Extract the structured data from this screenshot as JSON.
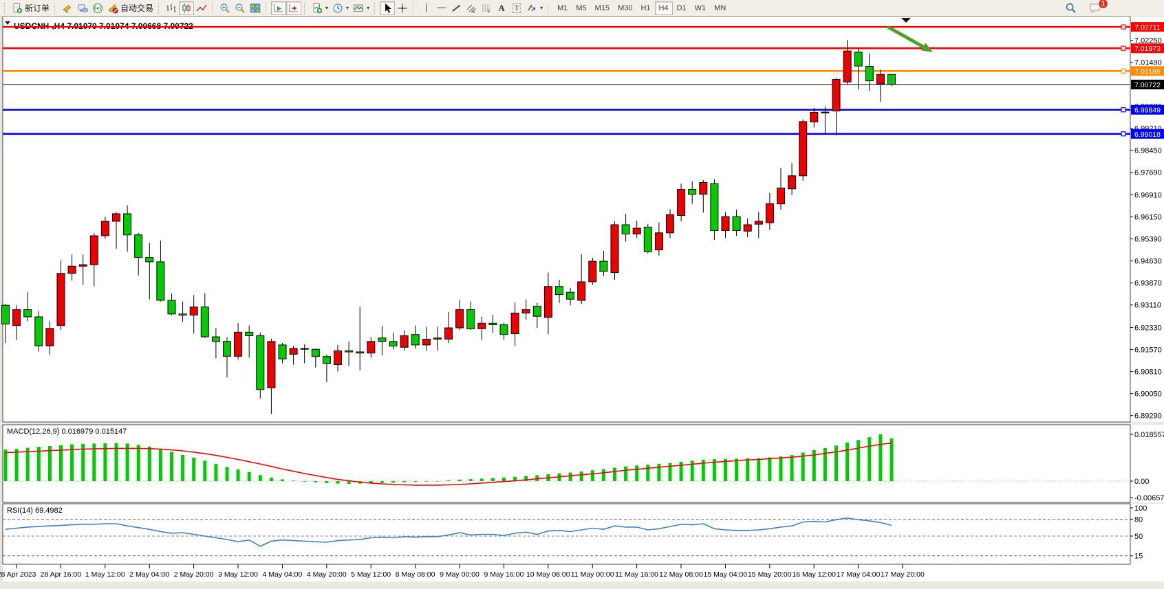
{
  "toolbar": {
    "new_order_label": "新订单",
    "autotrade_label": "自动交易",
    "timeframes": [
      "M1",
      "M5",
      "M15",
      "M30",
      "H1",
      "H4",
      "D1",
      "W1",
      "MN"
    ],
    "active_timeframe": "H4",
    "chat_badge": "1",
    "icons": [
      "new-order",
      "megaphone",
      "cloud-market",
      "signal",
      "auto-trading",
      "bar-chart",
      "candlestick-chart",
      "line-chart",
      "zoom-in",
      "zoom-out",
      "tile-windows",
      "auto-scroll",
      "chart-shift",
      "indicators",
      "periods",
      "templates",
      "cursor",
      "crosshair",
      "vertical-line",
      "horizontal-line",
      "trendline",
      "equidistant-channel",
      "fibonacci",
      "text",
      "text-label",
      "shapes",
      "search",
      "chat"
    ]
  },
  "chart_data": {
    "type": "candlestick",
    "symbol": "USDCNH-,H4",
    "ohlc_text": "7.01070 7.01074 7.00668 7.00722",
    "bull_color": "#ee0000",
    "bear_color": "#00cc00",
    "arrow_color": "#4e9e2e",
    "ylim": [
      6.8907,
      7.0307
    ],
    "x_labels": [
      "28 Apr 2023",
      "28 Apr 16:00",
      "1 May 12:00",
      "2 May 04:00",
      "2 May 20:00",
      "3 May 12:00",
      "4 May 04:00",
      "4 May 20:00",
      "5 May 12:00",
      "8 May 08:00",
      "9 May 00:00",
      "9 May 16:00",
      "10 May 08:00",
      "11 May 00:00",
      "11 May 16:00",
      "12 May 08:00",
      "15 May 04:00",
      "15 May 20:00",
      "16 May 12:00",
      "17 May 04:00",
      "17 May 20:00"
    ],
    "price_ticks": [
      {
        "label": "7.02250",
        "v": 7.0225
      },
      {
        "label": "7.01490",
        "v": 7.0149
      },
      {
        "label": "6.99970",
        "v": 6.9997
      },
      {
        "label": "6.99210",
        "v": 6.9921
      },
      {
        "label": "6.98450",
        "v": 6.9845
      },
      {
        "label": "6.97690",
        "v": 6.9769
      },
      {
        "label": "6.96910",
        "v": 6.9691
      },
      {
        "label": "6.96150",
        "v": 6.9615
      },
      {
        "label": "6.95390",
        "v": 6.9539
      },
      {
        "label": "6.94630",
        "v": 6.9463
      },
      {
        "label": "6.93870",
        "v": 6.9387
      },
      {
        "label": "6.93110",
        "v": 6.9311
      },
      {
        "label": "6.92330",
        "v": 6.9233
      },
      {
        "label": "6.91570",
        "v": 6.9157
      },
      {
        "label": "6.90810",
        "v": 6.9081
      },
      {
        "label": "6.90050",
        "v": 6.9005
      },
      {
        "label": "6.89290",
        "v": 6.8929
      }
    ],
    "levels": [
      {
        "label": "7.02711",
        "v": 7.02711,
        "color": "#ff0000",
        "width": 3,
        "handle": true
      },
      {
        "label": "7.01973",
        "v": 7.01973,
        "color": "#ff0000",
        "width": 3,
        "handle": true
      },
      {
        "label": "7.01188",
        "v": 7.01188,
        "color": "#ff8c00",
        "width": 3,
        "handle": true
      },
      {
        "label": "7.00722",
        "v": 7.00722,
        "color": "#000000",
        "width": 1,
        "handle": false
      },
      {
        "label": "6.99849",
        "v": 6.99849,
        "color": "#0000ff",
        "width": 3,
        "handle": true
      },
      {
        "label": "6.99018",
        "v": 6.99018,
        "color": "#0000ff",
        "width": 3,
        "handle": true
      }
    ],
    "candles": [
      [
        6.931,
        6.9315,
        6.918,
        6.9245
      ],
      [
        6.924,
        6.931,
        6.919,
        6.9295
      ],
      [
        6.9295,
        6.9355,
        6.9255,
        6.927
      ],
      [
        6.927,
        6.929,
        6.915,
        6.917
      ],
      [
        6.917,
        6.9255,
        6.914,
        6.923
      ],
      [
        6.924,
        6.9465,
        6.9225,
        6.942
      ],
      [
        6.942,
        6.9485,
        6.9395,
        6.9445
      ],
      [
        6.9445,
        6.9485,
        6.938,
        6.945
      ],
      [
        6.945,
        6.956,
        6.9375,
        6.955
      ],
      [
        6.955,
        6.9615,
        6.954,
        6.96
      ],
      [
        6.96,
        6.9632,
        6.9505,
        6.9626
      ],
      [
        6.9626,
        6.9655,
        6.9495,
        6.9553
      ],
      [
        6.9553,
        6.956,
        6.9413,
        6.9475
      ],
      [
        6.9475,
        6.9525,
        6.933,
        6.946
      ],
      [
        6.946,
        6.9533,
        6.9323,
        6.9327
      ],
      [
        6.9327,
        6.935,
        6.9275,
        6.928
      ],
      [
        6.928,
        6.9323,
        6.9252,
        6.9276
      ],
      [
        6.9276,
        6.9345,
        6.9212,
        6.9304
      ],
      [
        6.9304,
        6.9351,
        6.9197,
        6.9201
      ],
      [
        6.9201,
        6.923,
        6.9127,
        6.9185
      ],
      [
        6.9185,
        6.92,
        6.9061,
        6.9134
      ],
      [
        6.9134,
        6.9248,
        6.9123,
        6.9217
      ],
      [
        6.9217,
        6.924,
        6.9129,
        6.9205
      ],
      [
        6.9205,
        6.9215,
        6.8988,
        6.9019
      ],
      [
        6.9025,
        6.9195,
        6.8935,
        6.9185
      ],
      [
        6.9173,
        6.918,
        6.911,
        6.9125
      ],
      [
        6.9141,
        6.917,
        6.9105,
        6.9161
      ],
      [
        6.9161,
        6.9175,
        6.911,
        6.9158
      ],
      [
        6.9158,
        6.916,
        6.9095,
        6.9133
      ],
      [
        6.9133,
        6.914,
        6.9045,
        6.9109
      ],
      [
        6.9105,
        6.9173,
        6.9081,
        6.9153
      ],
      [
        6.9153,
        6.9185,
        6.91,
        6.9149
      ],
      [
        6.9149,
        6.9304,
        6.9085,
        6.9145
      ],
      [
        6.9145,
        6.92,
        6.9129,
        6.9185
      ],
      [
        6.9197,
        6.9239,
        6.9137,
        6.9185
      ],
      [
        6.9185,
        6.9216,
        6.9157,
        6.9169
      ],
      [
        6.9165,
        6.9224,
        6.9153,
        6.9205
      ],
      [
        6.9209,
        6.924,
        6.916,
        6.9173
      ],
      [
        6.9173,
        6.9235,
        6.9153,
        6.9193
      ],
      [
        6.9193,
        6.9236,
        6.9153,
        6.9197
      ],
      [
        6.9193,
        6.9287,
        6.918,
        6.9232
      ],
      [
        6.9232,
        6.9327,
        6.9225,
        6.9295
      ],
      [
        6.9295,
        6.9323,
        6.9225,
        6.9229
      ],
      [
        6.9229,
        6.927,
        6.9189,
        6.9248
      ],
      [
        6.9248,
        6.9277,
        6.9215,
        6.9243
      ],
      [
        6.9243,
        6.925,
        6.919,
        6.9209
      ],
      [
        6.9212,
        6.932,
        6.917,
        6.9283
      ],
      [
        6.9283,
        6.933,
        6.926,
        6.9295
      ],
      [
        6.9307,
        6.9318,
        6.9232,
        6.9272
      ],
      [
        6.9268,
        6.9423,
        6.921,
        6.9375
      ],
      [
        6.9375,
        6.9398,
        6.9318,
        6.9347
      ],
      [
        6.9355,
        6.937,
        6.931,
        6.9331
      ],
      [
        6.9327,
        6.9486,
        6.9315,
        6.9391
      ],
      [
        6.9391,
        6.9474,
        6.938,
        6.9462
      ],
      [
        6.9462,
        6.9498,
        6.941,
        6.9427
      ],
      [
        6.9423,
        6.96,
        6.9398,
        6.9588
      ],
      [
        6.9588,
        6.9626,
        6.953,
        6.9556
      ],
      [
        6.9556,
        6.9602,
        6.9542,
        6.9576
      ],
      [
        6.958,
        6.959,
        6.9489,
        6.9495
      ],
      [
        6.9501,
        6.9596,
        6.9482,
        6.956
      ],
      [
        6.956,
        6.9642,
        6.9542,
        6.9623
      ],
      [
        6.962,
        6.973,
        6.96,
        6.971
      ],
      [
        6.971,
        6.9738,
        6.966,
        6.9693
      ],
      [
        6.9693,
        6.9742,
        6.963,
        6.9734
      ],
      [
        6.973,
        6.9745,
        6.9536,
        6.9568
      ],
      [
        6.9568,
        6.9631,
        6.9542,
        6.9616
      ],
      [
        6.9616,
        6.964,
        6.955,
        6.9568
      ],
      [
        6.9566,
        6.961,
        6.9545,
        6.9588
      ],
      [
        6.959,
        6.9632,
        6.9542,
        6.96
      ],
      [
        6.9595,
        6.9698,
        6.957,
        6.9661
      ],
      [
        6.966,
        6.9785,
        6.964,
        6.9715
      ],
      [
        6.9712,
        6.9801,
        6.969,
        6.9757
      ],
      [
        6.9757,
        6.9952,
        6.974,
        6.9944
      ],
      [
        6.9943,
        6.9992,
        6.9924,
        6.9976
      ],
      [
        6.9976,
        6.9996,
        6.9905,
        6.9977
      ],
      [
        6.9981,
        7.0095,
        6.9896,
        7.009
      ],
      [
        7.0081,
        7.0226,
        7.0074,
        7.0188
      ],
      [
        7.0184,
        7.0196,
        7.0055,
        7.0136
      ],
      [
        7.0135,
        7.0179,
        7.005,
        7.0085
      ],
      [
        7.0074,
        7.0123,
        7.0013,
        7.0107
      ],
      [
        7.0107,
        7.01074,
        7.00668,
        7.00722
      ]
    ],
    "macd": {
      "label": "MACD(12,26,9) 0.016979 0.015147",
      "hist_color": "#00cc00",
      "signal_color": "#ff0000",
      "ticks": [
        {
          "label": "0.018557",
          "v": 0.018557
        },
        {
          "label": "0.00",
          "v": 0
        },
        {
          "label": "-0.006572",
          "v": -0.006572
        }
      ],
      "hist": [
        0.0125,
        0.0128,
        0.0132,
        0.0136,
        0.0139,
        0.0143,
        0.0146,
        0.0148,
        0.0149,
        0.015,
        0.0151,
        0.0149,
        0.0144,
        0.0137,
        0.0127,
        0.0116,
        0.0104,
        0.0093,
        0.0081,
        0.0068,
        0.0056,
        0.0046,
        0.0036,
        0.0024,
        0.0014,
        0.0007,
        0.0002,
        -0.0002,
        -0.0005,
        -0.0008,
        -0.001,
        -0.0011,
        -0.001,
        -0.0008,
        -0.0007,
        -0.0006,
        -0.0004,
        -0.0003,
        -0.0002,
        0.0,
        0.0003,
        0.0006,
        0.0008,
        0.001,
        0.0012,
        0.0014,
        0.0017,
        0.002,
        0.0023,
        0.0027,
        0.0031,
        0.0034,
        0.0038,
        0.0043,
        0.0047,
        0.0053,
        0.0058,
        0.0062,
        0.0065,
        0.0068,
        0.0072,
        0.0077,
        0.0081,
        0.0085,
        0.0087,
        0.0088,
        0.0089,
        0.009,
        0.0091,
        0.0094,
        0.0098,
        0.0103,
        0.0113,
        0.0123,
        0.0131,
        0.0141,
        0.0153,
        0.0163,
        0.0174,
        0.0186,
        0.017
      ],
      "signal": [
        0.0113,
        0.0115,
        0.0117,
        0.0119,
        0.0121,
        0.0123,
        0.0125,
        0.0127,
        0.0128,
        0.0129,
        0.013,
        0.013,
        0.013,
        0.0129,
        0.0127,
        0.0124,
        0.012,
        0.0115,
        0.0109,
        0.0102,
        0.0094,
        0.0086,
        0.0077,
        0.0068,
        0.0058,
        0.0048,
        0.0039,
        0.003,
        0.0022,
        0.0014,
        0.0007,
        0.0001,
        -0.0004,
        -0.0008,
        -0.0011,
        -0.0013,
        -0.0015,
        -0.0016,
        -0.0016,
        -0.0016,
        -0.0015,
        -0.0013,
        -0.0011,
        -0.0008,
        -0.0005,
        -0.0002,
        0.0001,
        0.0005,
        0.0009,
        0.0013,
        0.0017,
        0.0021,
        0.0025,
        0.0029,
        0.0033,
        0.0038,
        0.0043,
        0.0047,
        0.0051,
        0.0055,
        0.0059,
        0.0063,
        0.0067,
        0.0071,
        0.0075,
        0.0078,
        0.0081,
        0.0084,
        0.0086,
        0.0089,
        0.0092,
        0.0095,
        0.0099,
        0.0104,
        0.011,
        0.0116,
        0.0123,
        0.0131,
        0.0139,
        0.0146,
        0.0151
      ]
    },
    "rsi": {
      "label": "RSI(14) 69.4982",
      "color": "#3d85c8",
      "dashed_levels": [
        80,
        50,
        15
      ],
      "ticks": [
        {
          "label": "100",
          "v": 100
        },
        {
          "label": "80",
          "v": 80
        },
        {
          "label": "50",
          "v": 50
        },
        {
          "label": "15",
          "v": 15
        }
      ],
      "values": [
        62,
        64,
        66,
        67,
        68,
        69,
        70,
        71,
        71,
        72,
        72,
        68,
        65,
        62,
        58,
        55,
        56,
        53,
        50,
        47,
        44,
        40,
        43,
        32,
        41,
        43,
        42,
        41,
        40,
        39,
        42,
        43,
        44,
        47,
        48,
        47,
        49,
        48,
        49,
        49,
        52,
        56,
        52,
        53,
        53,
        51,
        55,
        57,
        53,
        59,
        60,
        58,
        61,
        64,
        62,
        68,
        66,
        66,
        61,
        63,
        67,
        71,
        70,
        72,
        63,
        61,
        60,
        60,
        61,
        63,
        66,
        68,
        75,
        76,
        75,
        79,
        82,
        79,
        77,
        74,
        69
      ]
    }
  }
}
